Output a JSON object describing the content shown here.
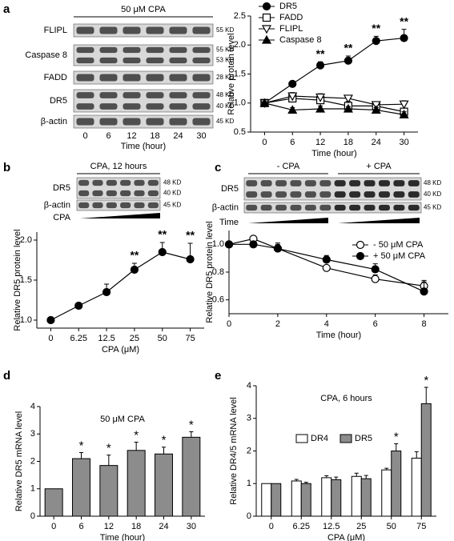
{
  "blots": [
    {
      "label": "a",
      "headers": [
        "50 μM CPA"
      ],
      "rows": [
        {
          "name": "FLIPL",
          "sizes": [
            "55 KD"
          ]
        },
        {
          "name": "Caspase 8",
          "sizes": [
            "55 KD",
            "53 KD"
          ]
        },
        {
          "name": "FADD",
          "sizes": [
            "28 KD"
          ]
        },
        {
          "name": "DR5",
          "sizes": [
            "48 KD",
            "40 KD"
          ]
        },
        {
          "name": "β-actin",
          "sizes": [
            "45 KD"
          ]
        }
      ],
      "lanes": [
        "0",
        "6",
        "12",
        "18",
        "24",
        "30"
      ],
      "xlabel": "Time (hour)"
    },
    {
      "label": "b",
      "headers": [
        "CPA, 12 hours"
      ],
      "rows": [
        {
          "name": "DR5",
          "sizes": [
            "48 KD",
            "40 KD"
          ]
        },
        {
          "name": "β-actin",
          "sizes": [
            "45 KD"
          ]
        }
      ],
      "xlabel": "CPA"
    },
    {
      "label": "c",
      "headers": [
        "- CPA",
        "+ CPA"
      ],
      "rows": [
        {
          "name": "DR5",
          "sizes": [
            "48 KD",
            "40 KD"
          ]
        },
        {
          "name": "β-actin",
          "sizes": [
            "45 KD"
          ]
        }
      ],
      "xlabel": "Time"
    }
  ],
  "chart_data": [
    {
      "type": "line",
      "ylabel": "Relative protein level",
      "xlabel": "Time (hour)",
      "x": [
        0,
        6,
        12,
        18,
        24,
        30
      ],
      "xlim": [
        -3,
        33
      ],
      "xticks": [
        0,
        6,
        12,
        18,
        24,
        30
      ],
      "ylim": [
        0.5,
        2.5
      ],
      "yticks": [
        0.5,
        {
          "value": 1,
          "label": "1.0"
        },
        1.5,
        {
          "value": 2,
          "label": "2.0"
        },
        2.5
      ],
      "legend": "upper left",
      "series": [
        {
          "name": "DR5",
          "color": "#000000",
          "marker": "circle-filled",
          "values": [
            1,
            1.33,
            1.65,
            1.73,
            2.07,
            2.12
          ],
          "errors": [
            0.02,
            0.04,
            0.06,
            0.08,
            0.08,
            0.15
          ],
          "stars": [
            null,
            null,
            "**",
            "**",
            "**",
            "**"
          ]
        },
        {
          "name": "FADD",
          "color": "#000000",
          "marker": "square-open",
          "values": [
            1,
            1.08,
            1.05,
            0.95,
            0.95,
            0.85
          ],
          "errors": [
            0.02,
            0.1,
            0.1,
            0.08,
            0.06,
            0.05
          ]
        },
        {
          "name": "FLIPL",
          "color": "#000000",
          "marker": "triangle-down-open",
          "values": [
            1,
            1.12,
            1.1,
            1.08,
            0.97,
            0.98
          ],
          "errors": [
            0.02,
            0.06,
            0.06,
            0.05,
            0.05,
            0.06
          ]
        },
        {
          "name": "Caspase 8",
          "color": "#000000",
          "marker": "triangle-up-filled",
          "values": [
            1,
            0.88,
            0.9,
            0.9,
            0.88,
            0.8
          ],
          "errors": [
            0.02,
            0.04,
            0.05,
            0.04,
            0.04,
            0.05
          ]
        }
      ]
    },
    {
      "type": "line",
      "ylabel": "Relative DR5 protein level",
      "xlabel": "CPA (μM)",
      "categories": [
        "0",
        "6.25",
        "12.5",
        "25",
        "50",
        "75"
      ],
      "ylim": [
        0.9,
        2.1
      ],
      "yticks": [
        {
          "value": 1,
          "label": "1.0"
        },
        1.5,
        {
          "value": 2,
          "label": "2.0"
        }
      ],
      "series": [
        {
          "color": "#000000",
          "marker": "circle-filled",
          "values": [
            1,
            1.18,
            1.35,
            1.63,
            1.85,
            1.76
          ],
          "errors": [
            0.02,
            0.03,
            0.1,
            0.08,
            0.12,
            0.2
          ],
          "stars": [
            null,
            null,
            null,
            "**",
            "**",
            "**"
          ]
        }
      ]
    },
    {
      "type": "line",
      "ylabel": "Relative DR5 protein level",
      "xlabel": "Time (hour)",
      "x": [
        0,
        1,
        2,
        4,
        6,
        8
      ],
      "xlim": [
        0,
        9
      ],
      "xticks": [
        0,
        2,
        4,
        6,
        8
      ],
      "ylim": [
        0.5,
        1.1
      ],
      "yticks": [
        0.6,
        0.8,
        {
          "value": 1,
          "label": "1.0"
        }
      ],
      "legend": "upper right",
      "series": [
        {
          "name": "- 50 μM CPA",
          "color": "#000000",
          "marker": "circle-open",
          "values": [
            1,
            1.04,
            0.97,
            0.83,
            0.75,
            0.7
          ],
          "errors": [
            0.02,
            0.02,
            0.03,
            0.02,
            0.03,
            0.04
          ]
        },
        {
          "name": "+ 50 μM CPA",
          "color": "#000000",
          "marker": "circle-filled",
          "values": [
            1,
            1,
            0.97,
            0.89,
            0.82,
            0.66
          ],
          "errors": [
            0.02,
            0.02,
            0.04,
            0.03,
            0.04,
            0.07
          ]
        }
      ]
    },
    {
      "type": "bar",
      "label": "d",
      "title": "50 μM CPA",
      "ylabel": "Relative DR5 mRNA level",
      "xlabel": "Time (hour)",
      "categories": [
        "0",
        "6",
        "12",
        "18",
        "24",
        "30"
      ],
      "ylim": [
        0,
        4
      ],
      "yticks": [
        0,
        1,
        2,
        3,
        4
      ],
      "series": [
        {
          "color": "#8c8c8c",
          "values": [
            1,
            2.1,
            1.85,
            2.4,
            2.27,
            2.88
          ],
          "errors": [
            0,
            0.22,
            0.38,
            0.3,
            0.25,
            0.2
          ],
          "stars": [
            null,
            "*",
            "*",
            "*",
            "*",
            "*"
          ]
        }
      ]
    },
    {
      "type": "bar",
      "label": "e",
      "title": "CPA, 6 hours",
      "ylabel": "Relative DR4/5 mRNA level",
      "xlabel": "CPA (μM)",
      "categories": [
        "0",
        "6.25",
        "12.5",
        "25",
        "50",
        "75"
      ],
      "ylim": [
        0,
        4
      ],
      "yticks": [
        0,
        1,
        2,
        3,
        4
      ],
      "legend": "upper left",
      "series": [
        {
          "name": "DR4",
          "color": "#ffffff",
          "values": [
            1,
            1.08,
            1.18,
            1.22,
            1.42,
            1.78
          ],
          "errors": [
            0,
            0.05,
            0.06,
            0.1,
            0.05,
            0.2
          ]
        },
        {
          "name": "DR5",
          "color": "#8c8c8c",
          "values": [
            1,
            1.0,
            1.12,
            1.15,
            2.0,
            3.45
          ],
          "errors": [
            0,
            0.04,
            0.08,
            0.1,
            0.22,
            0.5
          ],
          "stars": [
            null,
            null,
            null,
            null,
            "*",
            "*"
          ]
        }
      ]
    }
  ]
}
